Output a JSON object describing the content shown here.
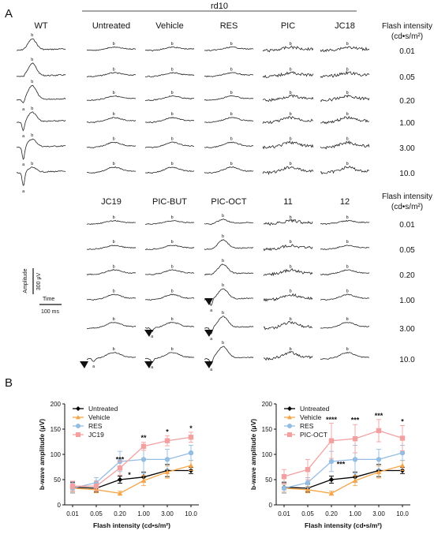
{
  "panel_a": {
    "label": "A",
    "group_label": "rd10",
    "flash_header": [
      "Flash intensity",
      "(cd•s/m²)"
    ],
    "top_columns": [
      "WT",
      "Untreated",
      "Vehicle",
      "RES",
      "PIC",
      "JC18"
    ],
    "bottom_columns": [
      "JC19",
      "PIC-BUT",
      "PIC-OCT",
      "11",
      "12"
    ],
    "intensities": [
      "0.01",
      "0.05",
      "0.20",
      "1.00",
      "3.00",
      "10.0"
    ],
    "scale_bar": {
      "amplitude_label": "Amplitude",
      "amplitude_value": "300 μV",
      "time_label": "Time",
      "time_value": "100 ms"
    },
    "wave_labels": {
      "a": "a",
      "b": "b"
    }
  },
  "panel_b": {
    "label": "B"
  },
  "chart_data": [
    {
      "type": "line",
      "xlabel": "Flash intensity (cd•s/m²)",
      "ylabel": "b-wave amplitude (μV)",
      "categories": [
        "0.01",
        "0.05",
        "0.20",
        "1.00",
        "3.00",
        "10.0"
      ],
      "ylim": [
        0,
        200
      ],
      "yticks": [
        0,
        50,
        100,
        150,
        200
      ],
      "series": [
        {
          "name": "Untreated",
          "color": "#000000",
          "marker": "diamond",
          "values": [
            35,
            33,
            50,
            55,
            68,
            68
          ],
          "errors": [
            10,
            8,
            7,
            10,
            12,
            6
          ]
        },
        {
          "name": "Vehicle",
          "color": "#f5a64a",
          "marker": "triangle",
          "values": [
            33,
            30,
            23,
            48,
            65,
            78
          ],
          "errors": [
            8,
            6,
            4,
            10,
            12,
            10
          ]
        },
        {
          "name": "RES",
          "color": "#93bde3",
          "marker": "circle",
          "values": [
            33,
            44,
            86,
            90,
            90,
            103
          ],
          "errors": [
            10,
            10,
            20,
            28,
            20,
            15
          ]
        },
        {
          "name": "JC19",
          "color": "#f4a0a0",
          "marker": "square",
          "values": [
            37,
            37,
            73,
            116,
            127,
            134
          ],
          "errors": [
            10,
            10,
            14,
            8,
            10,
            10
          ]
        }
      ],
      "significance": [
        {
          "category": "0.20",
          "label": "***",
          "value": 85
        },
        {
          "category": "0.20",
          "label": "*",
          "value": 55,
          "side": "right"
        },
        {
          "category": "1.00",
          "label": "**",
          "value": 128
        },
        {
          "category": "3.00",
          "label": "*",
          "value": 140
        },
        {
          "category": "10.0",
          "label": "*",
          "value": 147
        }
      ]
    },
    {
      "type": "line",
      "xlabel": "Flash intensity (cd•s/m²)",
      "ylabel": "b-wave amplitude (μV)",
      "categories": [
        "0.01",
        "0.05",
        "0.20",
        "1.00",
        "3.00",
        "10.0"
      ],
      "ylim": [
        0,
        200
      ],
      "yticks": [
        0,
        50,
        100,
        150,
        200
      ],
      "series": [
        {
          "name": "Untreated",
          "color": "#000000",
          "marker": "diamond",
          "values": [
            35,
            33,
            50,
            55,
            68,
            68
          ],
          "errors": [
            10,
            8,
            7,
            10,
            12,
            6
          ]
        },
        {
          "name": "Vehicle",
          "color": "#f5a64a",
          "marker": "triangle",
          "values": [
            33,
            30,
            23,
            48,
            65,
            78
          ],
          "errors": [
            8,
            6,
            4,
            10,
            12,
            10
          ]
        },
        {
          "name": "RES",
          "color": "#93bde3",
          "marker": "circle",
          "values": [
            33,
            44,
            86,
            90,
            90,
            103
          ],
          "errors": [
            10,
            10,
            20,
            28,
            20,
            15
          ]
        },
        {
          "name": "PIC-OCT",
          "color": "#f4a0a0",
          "marker": "square",
          "values": [
            56,
            70,
            127,
            131,
            147,
            132
          ],
          "errors": [
            14,
            20,
            35,
            28,
            22,
            25
          ]
        }
      ],
      "significance": [
        {
          "category": "0.20",
          "label": "****",
          "value": 164
        },
        {
          "category": "0.20",
          "label": "***",
          "value": 76,
          "side": "right"
        },
        {
          "category": "1.00",
          "label": "***",
          "value": 163
        },
        {
          "category": "3.00",
          "label": "***",
          "value": 172
        },
        {
          "category": "10.0",
          "label": "*",
          "value": 160
        }
      ]
    }
  ]
}
